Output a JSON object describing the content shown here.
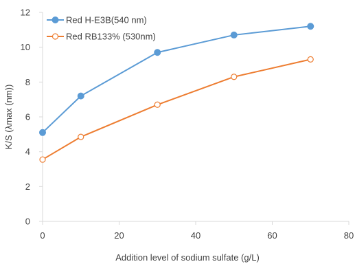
{
  "chart_data": {
    "type": "line",
    "title": "",
    "xlabel": "Addition level of sodium sulfate (g/L)",
    "ylabel": "K/S (λmax (nm))",
    "xlim": [
      0,
      80
    ],
    "ylim": [
      0,
      12
    ],
    "x_ticks": [
      0,
      20,
      40,
      60,
      80
    ],
    "y_ticks": [
      0,
      2,
      4,
      6,
      8,
      10,
      12
    ],
    "grid": false,
    "legend_position": "top-left",
    "series": [
      {
        "name": "Red H-E3B(540 nm)",
        "color": "#5b9bd5",
        "marker": "filled-circle",
        "x": [
          0,
          10,
          30,
          50,
          70
        ],
        "y": [
          5.1,
          7.2,
          9.7,
          10.7,
          11.2
        ]
      },
      {
        "name": "Red RB133% (530nm)",
        "color": "#ed7d31",
        "marker": "open-circle",
        "x": [
          0,
          10,
          30,
          50,
          70
        ],
        "y": [
          3.55,
          4.85,
          6.7,
          8.3,
          9.3
        ]
      }
    ]
  }
}
